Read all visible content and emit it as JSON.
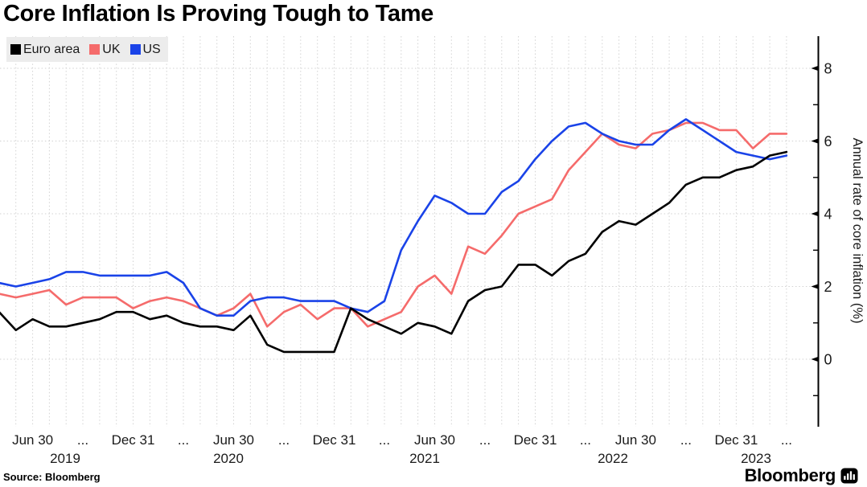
{
  "title": "Core Inflation Is Proving Tough to Tame",
  "source": "Source: Bloomberg",
  "brand": {
    "wordmark": "Bloomberg",
    "icon": "bloomberg-bars-icon"
  },
  "legend": [
    {
      "label": "Euro area",
      "color": "#000000"
    },
    {
      "label": "UK",
      "color": "#f56b6b"
    },
    {
      "label": "US",
      "color": "#1a43e8"
    }
  ],
  "y_axis": {
    "title": "Annual rate of core inflation (%)",
    "ticks": [
      0,
      2,
      4,
      6,
      8
    ],
    "minor_ticks": [
      -1,
      1,
      3,
      5,
      7
    ]
  },
  "x_axis": {
    "tick_labels": [
      "Jun 30",
      "...",
      "Dec 31",
      "...",
      "Jun 30",
      "...",
      "Dec 31",
      "...",
      "Jun 30",
      "...",
      "Dec 31",
      "...",
      "Jun 30",
      "...",
      "Dec 31",
      "..."
    ],
    "years": [
      "2019",
      "2020",
      "2021",
      "2022",
      "2023"
    ]
  },
  "chart_data": {
    "type": "line",
    "x_unit": "month",
    "start_month": "2019-04",
    "end_month": "2023-03",
    "grid": "dotted",
    "ylim": [
      -1.85,
      8.85
    ],
    "legend_position": "top-left",
    "series": [
      {
        "name": "Euro area",
        "color": "#000000",
        "values": [
          1.3,
          0.8,
          1.1,
          0.9,
          0.9,
          1.0,
          1.1,
          1.3,
          1.3,
          1.1,
          1.2,
          1.0,
          0.9,
          0.9,
          0.8,
          1.2,
          0.4,
          0.2,
          0.2,
          0.2,
          0.2,
          1.4,
          1.1,
          0.9,
          0.7,
          1.0,
          0.9,
          0.7,
          1.6,
          1.9,
          2.0,
          2.6,
          2.6,
          2.3,
          2.7,
          2.9,
          3.5,
          3.8,
          3.7,
          4.0,
          4.3,
          4.8,
          5.0,
          5.0,
          5.2,
          5.3,
          5.6,
          5.7
        ]
      },
      {
        "name": "UK",
        "color": "#f56b6b",
        "values": [
          1.8,
          1.7,
          1.8,
          1.9,
          1.5,
          1.7,
          1.7,
          1.7,
          1.4,
          1.6,
          1.7,
          1.6,
          1.4,
          1.2,
          1.4,
          1.8,
          0.9,
          1.3,
          1.5,
          1.1,
          1.4,
          1.4,
          0.9,
          1.1,
          1.3,
          2.0,
          2.3,
          1.8,
          3.1,
          2.9,
          3.4,
          4.0,
          4.2,
          4.4,
          5.2,
          5.7,
          6.2,
          5.9,
          5.8,
          6.2,
          6.3,
          6.5,
          6.5,
          6.3,
          6.3,
          5.8,
          6.2,
          6.2
        ]
      },
      {
        "name": "US",
        "color": "#1a43e8",
        "values": [
          2.1,
          2.0,
          2.1,
          2.2,
          2.4,
          2.4,
          2.3,
          2.3,
          2.3,
          2.3,
          2.4,
          2.1,
          1.4,
          1.2,
          1.2,
          1.6,
          1.7,
          1.7,
          1.6,
          1.6,
          1.6,
          1.4,
          1.3,
          1.6,
          3.0,
          3.8,
          4.5,
          4.3,
          4.0,
          4.0,
          4.6,
          4.9,
          5.5,
          6.0,
          6.4,
          6.5,
          6.2,
          6.0,
          5.9,
          5.9,
          6.3,
          6.6,
          6.3,
          6.0,
          5.7,
          5.6,
          5.5,
          5.6
        ]
      }
    ]
  }
}
